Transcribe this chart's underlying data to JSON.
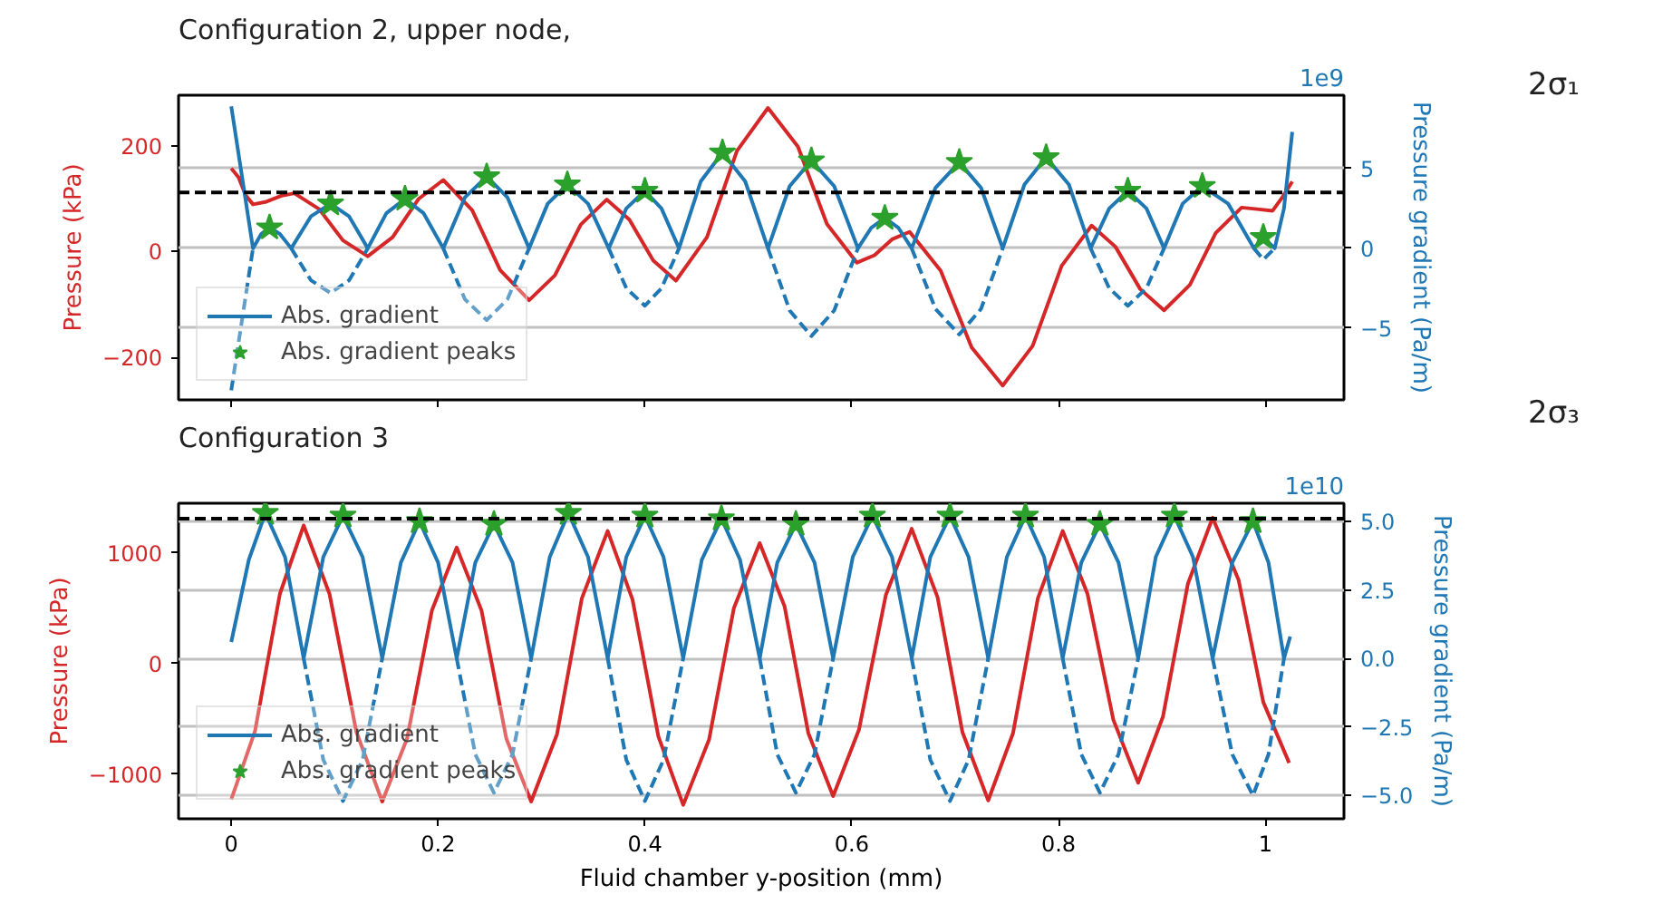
{
  "chart_data": [
    {
      "type": "line",
      "title": "Configuration 2, upper node,",
      "ylabel": "Pressure (kPa)",
      "y2label": "Pressure gradient (Pa/m)",
      "annotations": [
        "1e9",
        "2σ₁"
      ],
      "xlim": [
        -0.051,
        1.076
      ],
      "xticks": [
        0,
        0.2,
        0.4,
        0.6,
        0.8,
        1
      ],
      "ylim": [
        -280,
        295
      ],
      "yticks": [
        {
          "value": -200,
          "label": "−200"
        },
        0,
        200
      ],
      "y2lim": [
        -9.5,
        9.6
      ],
      "y2ticks": [
        {
          "value": -5,
          "label": "−5"
        },
        0,
        5
      ],
      "tick_labels": "y",
      "grid": "y",
      "legend": "bottom left",
      "ref_lines": [
        {
          "axis": "y2",
          "value": 3.5,
          "color": "#000000",
          "line_style": "dashed"
        }
      ],
      "series": [
        {
          "axis": "y",
          "color": "#d62728",
          "x": [
            0,
            0.007,
            0.014,
            0.021,
            0.034,
            0.048,
            0.061,
            0.085,
            0.108,
            0.132,
            0.156,
            0.181,
            0.205,
            0.233,
            0.26,
            0.288,
            0.313,
            0.338,
            0.363,
            0.385,
            0.408,
            0.43,
            0.46,
            0.489,
            0.519,
            0.548,
            0.576,
            0.605,
            0.622,
            0.639,
            0.656,
            0.686,
            0.716,
            0.746,
            0.775,
            0.803,
            0.832,
            0.855,
            0.879,
            0.902,
            0.927,
            0.952,
            0.977,
            0.992,
            1.007,
            1.017,
            1.026
          ],
          "values": [
            157,
            140,
            106,
            89,
            94,
            105,
            110,
            80,
            21,
            -9,
            27,
            99,
            135,
            78,
            -35,
            -92,
            -45,
            51,
            98,
            60,
            -17,
            -55,
            27,
            190,
            271,
            198,
            52,
            -21,
            -7,
            23,
            37,
            -36,
            -181,
            -253,
            -178,
            -27,
            49,
            9,
            -71,
            -111,
            -63,
            35,
            83,
            80,
            77,
            104,
            132
          ]
        },
        {
          "axis": "y2",
          "color": "#1f77b4",
          "line_style": "dashed",
          "x": [
            0,
            0.021,
            0.037,
            0.058,
            0.077,
            0.096,
            0.114,
            0.132,
            0.168,
            0.205,
            0.226,
            0.247,
            0.267,
            0.288,
            0.325,
            0.365,
            0.382,
            0.4,
            0.416,
            0.433,
            0.475,
            0.519,
            0.54,
            0.561,
            0.583,
            0.606,
            0.632,
            0.658,
            0.681,
            0.704,
            0.725,
            0.746,
            0.788,
            0.831,
            0.849,
            0.867,
            0.885,
            0.902,
            0.939,
            0.989,
            0.998,
            1.009
          ],
          "values": [
            -8.9,
            0,
            null,
            0,
            -2.0,
            -2.8,
            -2.0,
            0,
            null,
            0,
            -3.2,
            -4.5,
            -3.2,
            0,
            null,
            0,
            -2.5,
            -3.6,
            -2.5,
            0,
            null,
            0,
            -3.9,
            -5.5,
            -3.9,
            0,
            null,
            0,
            -3.8,
            -5.4,
            -3.8,
            0,
            null,
            0,
            -2.5,
            -3.6,
            -2.5,
            0,
            null,
            0,
            -0.7,
            0
          ]
        },
        {
          "name": "Abs. gradient",
          "axis": "y2",
          "color": "#1f77b4",
          "line_style": "solid",
          "x": [
            0,
            0.021,
            0.029,
            0.037,
            0.047,
            0.058,
            0.077,
            0.096,
            0.114,
            0.132,
            0.15,
            0.168,
            0.186,
            0.205,
            0.226,
            0.247,
            0.267,
            0.288,
            0.306,
            0.325,
            0.345,
            0.365,
            0.382,
            0.4,
            0.416,
            0.433,
            0.454,
            0.475,
            0.497,
            0.519,
            0.54,
            0.561,
            0.583,
            0.606,
            0.619,
            0.632,
            0.645,
            0.658,
            0.681,
            0.704,
            0.725,
            0.746,
            0.767,
            0.788,
            0.81,
            0.831,
            0.849,
            0.867,
            0.885,
            0.902,
            0.92,
            0.939,
            0.964,
            0.989,
            0.998,
            1.009,
            1.018,
            1.026
          ],
          "values": [
            8.9,
            0,
            0.9,
            1.3,
            0.9,
            0,
            2.0,
            2.8,
            2.0,
            0,
            2.2,
            3.1,
            2.2,
            0,
            3.2,
            4.5,
            3.2,
            0,
            2.8,
            4.0,
            2.8,
            0,
            2.5,
            3.6,
            2.5,
            0,
            4.2,
            6.0,
            4.2,
            0,
            3.9,
            5.5,
            3.9,
            0,
            1.3,
            1.9,
            1.3,
            0,
            3.8,
            5.4,
            3.8,
            0,
            4.0,
            5.7,
            4.0,
            0,
            2.5,
            3.6,
            2.5,
            0,
            2.8,
            3.9,
            2.8,
            0,
            0.7,
            0,
            2.5,
            7.3
          ]
        },
        {
          "type": "scatter",
          "name": "Abs. gradient peaks",
          "axis": "y2",
          "color": "#2ca02c",
          "marker": "star",
          "x": [
            0.037,
            0.096,
            0.168,
            0.247,
            0.325,
            0.4,
            0.475,
            0.561,
            0.632,
            0.704,
            0.788,
            0.867,
            0.939,
            0.998
          ],
          "values": [
            1.3,
            2.8,
            3.1,
            4.5,
            4.0,
            3.6,
            6.0,
            5.5,
            1.9,
            5.4,
            5.7,
            3.6,
            3.9,
            0.7
          ]
        }
      ]
    },
    {
      "type": "line",
      "title": "Configuration 3",
      "xlabel": "Fluid chamber y-position (mm)",
      "ylabel": "Pressure (kPa)",
      "y2label": "Pressure gradient (Pa/m)",
      "annotations": [
        "1e10",
        "2σ₃"
      ],
      "xlim": [
        -0.051,
        1.076
      ],
      "xticks": [
        0,
        0.2,
        0.4,
        0.6,
        0.8,
        1
      ],
      "ylim": [
        -1406,
        1451
      ],
      "yticks": [
        {
          "value": -1000,
          "label": "−1000"
        },
        0,
        1000
      ],
      "y2lim": [
        -5.85,
        5.66
      ],
      "y2ticks": [
        {
          "value": -5,
          "label": "−5.0"
        },
        {
          "value": -2.5,
          "label": "−2.5"
        },
        {
          "value": 0,
          "label": "0.0"
        },
        2.5,
        {
          "value": 5,
          "label": "5.0"
        }
      ],
      "grid": "y",
      "legend": "bottom left",
      "ref_lines": [
        {
          "axis": "y2",
          "value": 5.1,
          "color": "#000000",
          "line_style": "dashed"
        }
      ],
      "series": [
        {
          "axis": "y",
          "color": "#d62728",
          "x": [
            0,
            0.023,
            0.047,
            0.07,
            0.095,
            0.121,
            0.146,
            0.17,
            0.194,
            0.218,
            0.242,
            0.266,
            0.29,
            0.315,
            0.339,
            0.364,
            0.388,
            0.413,
            0.437,
            0.462,
            0.486,
            0.511,
            0.535,
            0.558,
            0.582,
            0.607,
            0.633,
            0.658,
            0.683,
            0.707,
            0.732,
            0.756,
            0.78,
            0.804,
            0.828,
            0.853,
            0.877,
            0.901,
            0.925,
            0.949,
            0.974,
            0.998,
            1.023
          ],
          "values": [
            -1230,
            -610,
            630,
            1250,
            630,
            -620,
            -1250,
            -680,
            480,
            1050,
            480,
            -680,
            -1250,
            -640,
            590,
            1200,
            580,
            -660,
            -1280,
            -690,
            500,
            1090,
            520,
            -630,
            -1200,
            -600,
            620,
            1220,
            600,
            -620,
            -1240,
            -630,
            590,
            1200,
            630,
            -510,
            -1080,
            -480,
            720,
            1320,
            760,
            -350,
            -900
          ]
        },
        {
          "axis": "y2",
          "color": "#1f77b4",
          "line_style": "dashed",
          "x": [
            0.07,
            0.089,
            0.108,
            0.127,
            0.146,
            0.182,
            0.218,
            0.236,
            0.254,
            0.272,
            0.29,
            0.326,
            0.364,
            0.382,
            0.4,
            0.418,
            0.437,
            0.474,
            0.511,
            0.528,
            0.546,
            0.564,
            0.582,
            0.62,
            0.658,
            0.676,
            0.695,
            0.713,
            0.732,
            0.768,
            0.804,
            0.822,
            0.84,
            0.858,
            0.877,
            0.912,
            0.949,
            0.968,
            0.988,
            1.003,
            1.018
          ],
          "values": [
            0,
            -3.7,
            -5.2,
            -3.7,
            0,
            null,
            0,
            -3.5,
            -4.9,
            -3.5,
            0,
            null,
            0,
            -3.7,
            -5.2,
            -3.7,
            0,
            null,
            0,
            -3.5,
            -4.9,
            -3.5,
            0,
            null,
            0,
            -3.7,
            -5.2,
            -3.7,
            0,
            null,
            0,
            -3.5,
            -4.9,
            -3.5,
            0,
            null,
            0,
            -3.5,
            -5.0,
            -3.5,
            0
          ]
        },
        {
          "name": "Abs. gradient",
          "axis": "y2",
          "color": "#1f77b4",
          "line_style": "solid",
          "x": [
            0,
            0.017,
            0.033,
            0.052,
            0.07,
            0.089,
            0.108,
            0.127,
            0.146,
            0.164,
            0.182,
            0.2,
            0.218,
            0.236,
            0.254,
            0.272,
            0.29,
            0.308,
            0.326,
            0.345,
            0.364,
            0.382,
            0.4,
            0.418,
            0.437,
            0.455,
            0.474,
            0.492,
            0.511,
            0.528,
            0.546,
            0.564,
            0.582,
            0.601,
            0.62,
            0.639,
            0.658,
            0.676,
            0.695,
            0.713,
            0.732,
            0.75,
            0.768,
            0.786,
            0.804,
            0.822,
            0.84,
            0.858,
            0.877,
            0.894,
            0.912,
            0.93,
            0.949,
            0.968,
            0.988,
            1.003,
            1.018,
            1.024
          ],
          "values": [
            0.6,
            3.6,
            5.3,
            3.7,
            0,
            3.7,
            5.2,
            3.7,
            0,
            3.5,
            5.0,
            3.5,
            0,
            3.5,
            4.9,
            3.5,
            0,
            3.7,
            5.3,
            3.7,
            0,
            3.7,
            5.2,
            3.7,
            0,
            3.6,
            5.1,
            3.6,
            0,
            3.5,
            4.9,
            3.5,
            0,
            3.7,
            5.2,
            3.7,
            0,
            3.7,
            5.2,
            3.7,
            0,
            3.7,
            5.2,
            3.7,
            0,
            3.5,
            4.9,
            3.5,
            0,
            3.7,
            5.2,
            3.7,
            0,
            3.5,
            5.0,
            3.5,
            0,
            0.8
          ]
        },
        {
          "type": "scatter",
          "name": "Abs. gradient peaks",
          "axis": "y2",
          "color": "#2ca02c",
          "marker": "star",
          "x": [
            0.033,
            0.108,
            0.182,
            0.254,
            0.326,
            0.4,
            0.474,
            0.546,
            0.62,
            0.695,
            0.768,
            0.84,
            0.912,
            0.988
          ],
          "values": [
            5.3,
            5.2,
            5.0,
            4.9,
            5.3,
            5.2,
            5.1,
            4.9,
            5.2,
            5.2,
            5.2,
            4.9,
            5.2,
            5.0
          ]
        }
      ]
    }
  ]
}
